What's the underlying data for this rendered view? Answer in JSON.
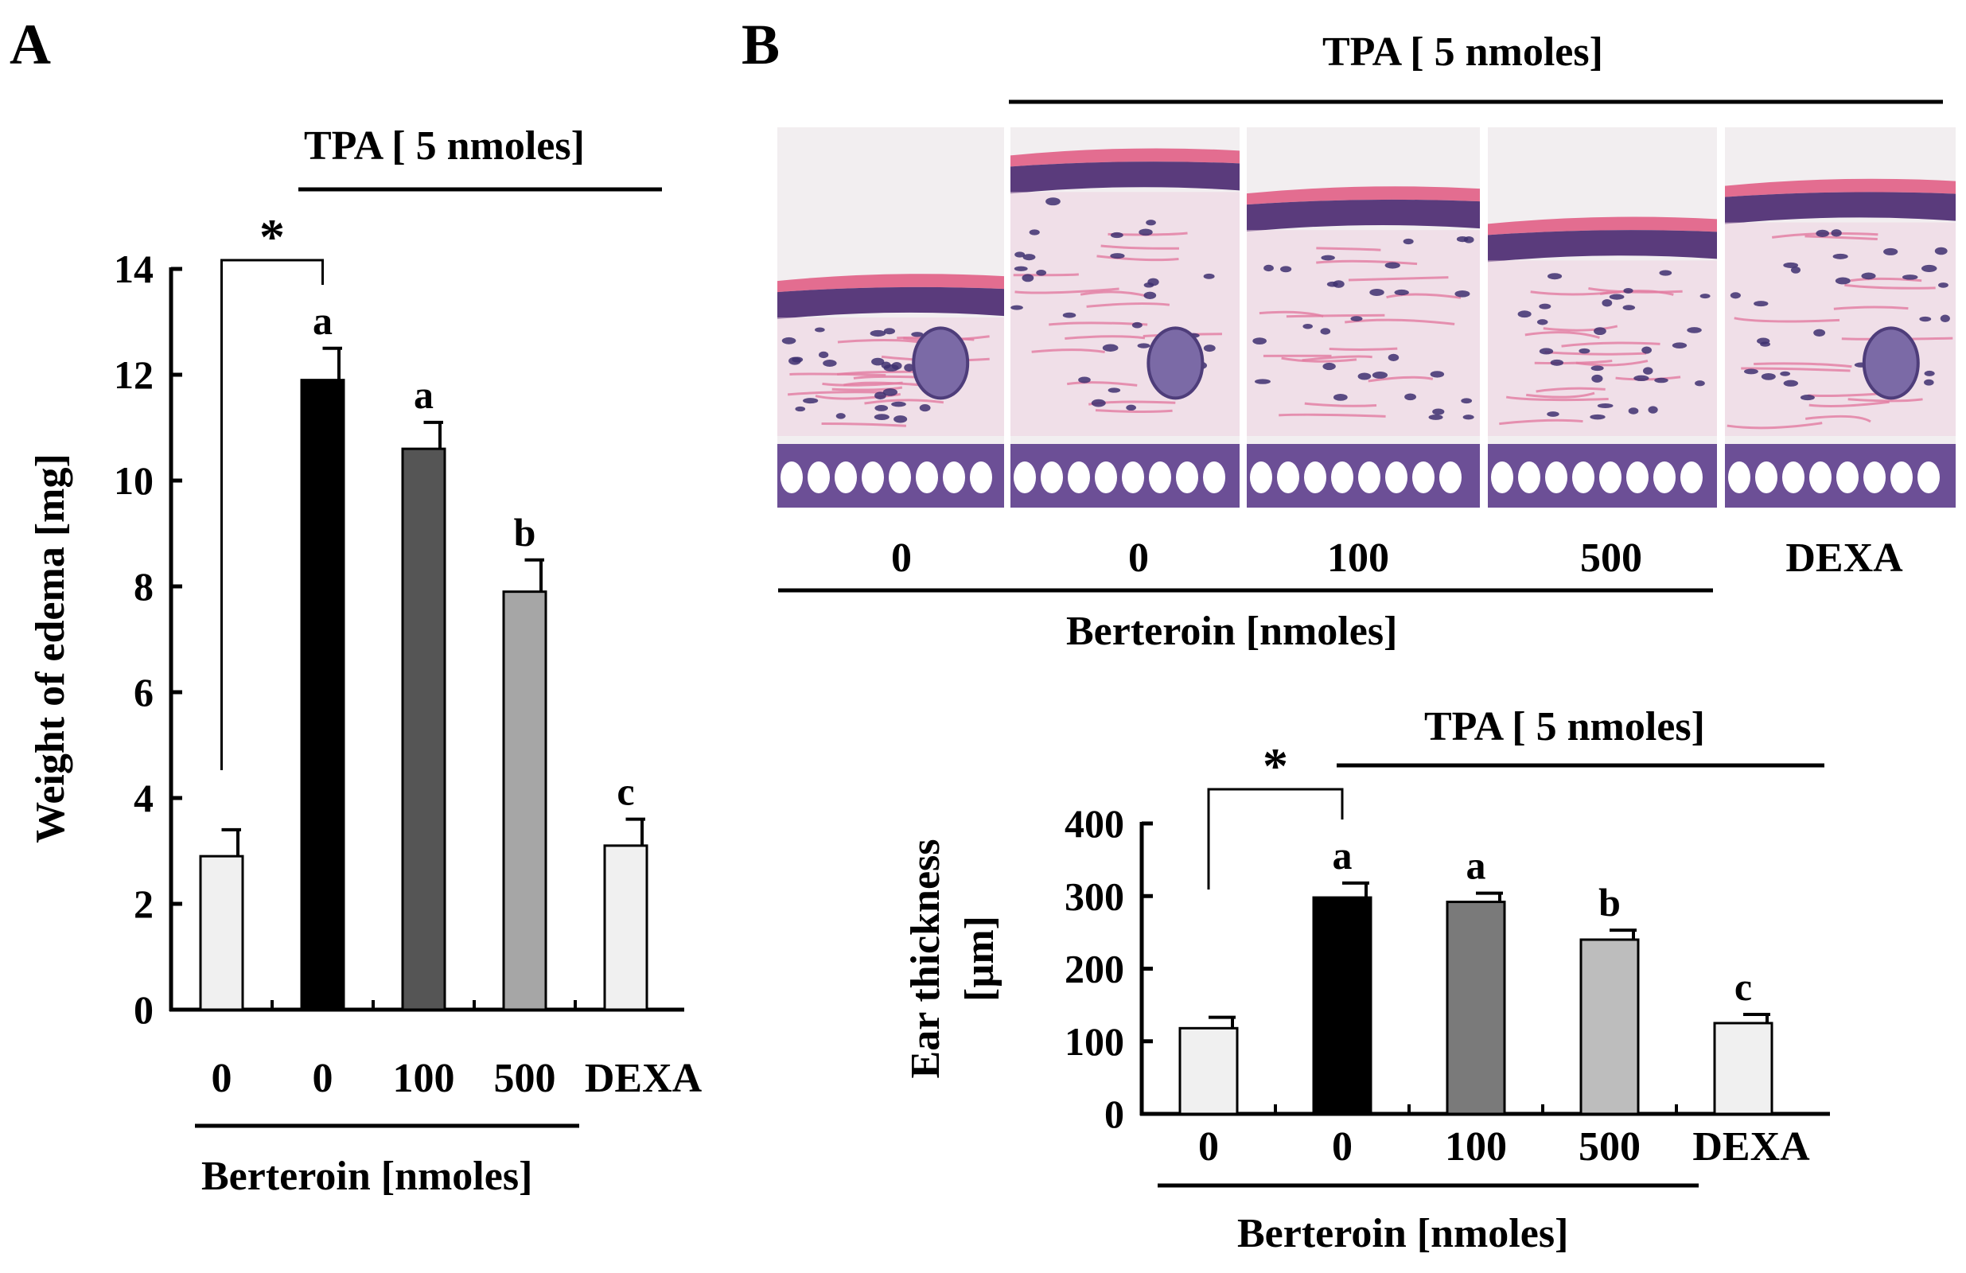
{
  "panels": {
    "a_label": "A",
    "b_label": "B"
  },
  "treatment_label": "TPA [ 5 nmoles]",
  "berteroin_label": "Berteroin [nmoles]",
  "colors": {
    "control": "#f0f0f0",
    "tpa_only": "#000000",
    "b100_a": "#555555",
    "b500_a": "#a6a6a6",
    "b100_b": "#7a7a7a",
    "b500_b": "#bdbdbd",
    "dexa": "#f0f0f0"
  },
  "histology": {
    "labels": [
      "0",
      "0",
      "100",
      "500",
      "DEXA"
    ]
  },
  "chart_data": [
    {
      "type": "bar",
      "panel": "A",
      "categories": [
        "0",
        "0",
        "100",
        "500",
        "DEXA"
      ],
      "values": [
        2.9,
        11.9,
        10.6,
        7.9,
        3.1
      ],
      "errors": [
        0.5,
        0.6,
        0.5,
        0.6,
        0.5
      ],
      "letters": [
        "",
        "a",
        "a",
        "b",
        "c"
      ],
      "significance": "*",
      "ylabel": "Weight of edema [mg]",
      "ylim": [
        0,
        14
      ],
      "yticks": [
        0,
        2,
        4,
        6,
        8,
        10,
        12,
        14
      ]
    },
    {
      "type": "bar",
      "panel": "B",
      "categories": [
        "0",
        "0",
        "100",
        "500",
        "DEXA"
      ],
      "values": [
        118,
        298,
        292,
        240,
        125
      ],
      "errors": [
        15,
        20,
        12,
        13,
        12
      ],
      "letters": [
        "",
        "a",
        "a",
        "b",
        "c"
      ],
      "significance": "*",
      "ylabel_line1": "Ear thickness",
      "ylabel_line2": "[µm]",
      "ylim": [
        0,
        400
      ],
      "yticks": [
        0,
        100,
        200,
        300,
        400
      ]
    }
  ]
}
